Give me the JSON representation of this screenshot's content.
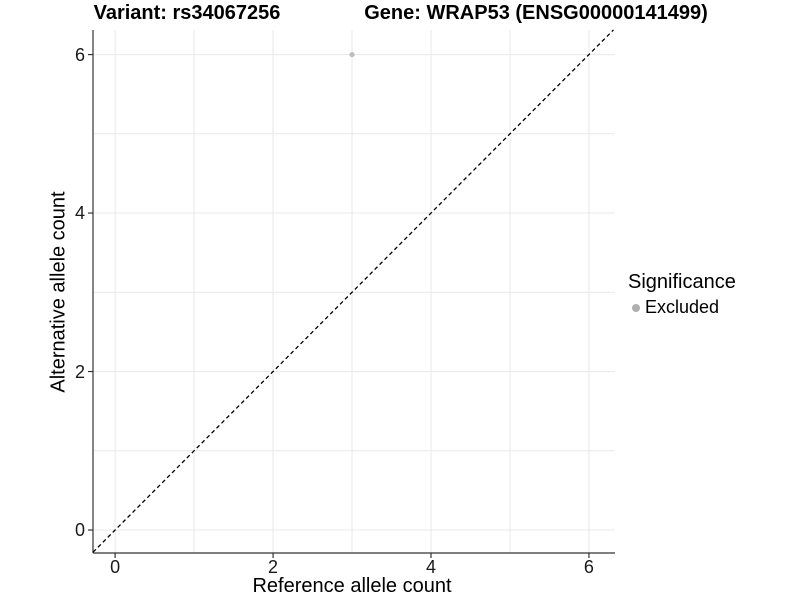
{
  "chart_data": {
    "type": "scatter",
    "titles": [
      "Variant: rs34067256",
      "Gene: WRAP53 (ENSG00000141499)"
    ],
    "xlabel": "Reference allele count",
    "ylabel": "Alternative allele count",
    "xlim": [
      -0.28,
      6.33
    ],
    "ylim": [
      -0.29,
      6.31
    ],
    "xticks": [
      0,
      2,
      4,
      6
    ],
    "yticks": [
      0,
      2,
      4,
      6
    ],
    "grid_positions": [
      0,
      1,
      2,
      3,
      4,
      5,
      6
    ],
    "grid": "on",
    "points": [
      {
        "x": 3,
        "y": 6,
        "group": "Excluded"
      }
    ],
    "identity_line": {
      "equation": "y = x",
      "style": "dashed",
      "color": "#000000"
    },
    "legend": {
      "title": "Significance",
      "position": "right",
      "entries": [
        {
          "label": "Excluded",
          "color": "#b0b0b0"
        }
      ]
    },
    "colors": {
      "grid": "#e8e8e8",
      "axis": "#333333",
      "tick": "#333333",
      "point": "#bcbcbc",
      "background": "#ffffff",
      "text": "#000000"
    }
  }
}
